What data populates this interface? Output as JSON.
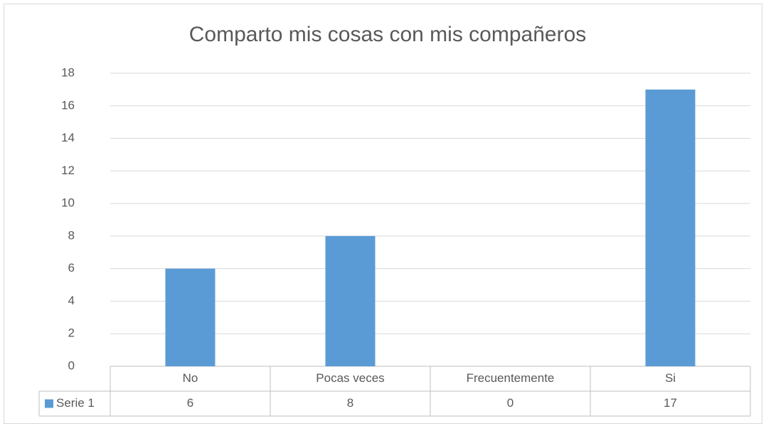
{
  "chart_data": {
    "type": "bar",
    "title": "Comparto mis cosas con mis compañeros",
    "categories": [
      "No",
      "Pocas veces",
      "Frecuentemente",
      "Si"
    ],
    "series": [
      {
        "name": "Serie 1",
        "color": "#5b9bd5",
        "values": [
          6,
          8,
          0,
          17
        ]
      }
    ],
    "ylim": [
      0,
      18
    ],
    "yticks": [
      0,
      2,
      4,
      6,
      8,
      10,
      12,
      14,
      16,
      18
    ],
    "grid": true,
    "data_table": true
  }
}
